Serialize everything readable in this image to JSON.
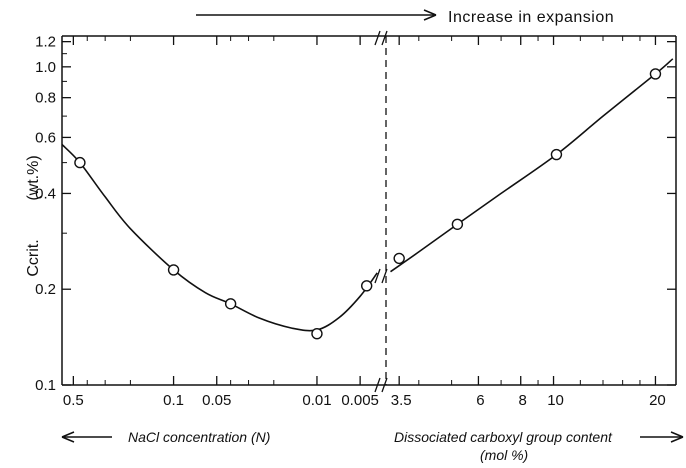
{
  "chart_data": {
    "type": "scatter",
    "title": "",
    "y_axis": {
      "label_main": "Ccrit.",
      "label_unit": "(wt.%)",
      "scale": "log",
      "range": [
        0.1,
        1.25
      ],
      "ticks": [
        {
          "value": 0.1,
          "label": "0.1"
        },
        {
          "value": 0.2,
          "label": "0.2"
        },
        {
          "value": 0.4,
          "label": "0.4"
        },
        {
          "value": 0.6,
          "label": "0.6"
        },
        {
          "value": 0.8,
          "label": "0.8"
        },
        {
          "value": 1.0,
          "label": "1.0"
        },
        {
          "value": 1.2,
          "label": "1.2"
        }
      ]
    },
    "x_axis_left": {
      "label": "NaCl concentration (N)",
      "arrow_direction": "left",
      "scale": "log-reversed",
      "range": [
        0.6,
        0.0033
      ],
      "ticks": [
        {
          "value": 0.5,
          "label": "0.5"
        },
        {
          "value": 0.1,
          "label": "0.1"
        },
        {
          "value": 0.05,
          "label": "0.05"
        },
        {
          "value": 0.01,
          "label": "0.01"
        },
        {
          "value": 0.005,
          "label": "0.005"
        }
      ]
    },
    "x_axis_right": {
      "label_line1": "Dissociated carboxyl group content",
      "label_line2": "(mol %)",
      "arrow_direction": "right",
      "scale": "log",
      "range": [
        3.2,
        23
      ],
      "ticks": [
        {
          "value": 3.5,
          "label": "3.5"
        },
        {
          "value": 6,
          "label": "6"
        },
        {
          "value": 8,
          "label": "8"
        },
        {
          "value": 10,
          "label": "10"
        },
        {
          "value": 20,
          "label": "20"
        }
      ]
    },
    "top_annotation": "Increase in expansion",
    "series": [
      {
        "axis": "left",
        "points": [
          {
            "x": 0.45,
            "y": 0.5
          },
          {
            "x": 0.1,
            "y": 0.23
          },
          {
            "x": 0.04,
            "y": 0.18
          },
          {
            "x": 0.01,
            "y": 0.145
          },
          {
            "x": 0.0045,
            "y": 0.205
          }
        ]
      },
      {
        "axis": "right",
        "points": [
          {
            "x": 3.5,
            "y": 0.25
          },
          {
            "x": 5.2,
            "y": 0.32
          },
          {
            "x": 10.2,
            "y": 0.53
          },
          {
            "x": 20,
            "y": 0.95
          }
        ]
      }
    ],
    "fit_curve": {
      "left": [
        {
          "x": 0.6,
          "y": 0.57
        },
        {
          "x": 0.45,
          "y": 0.5
        },
        {
          "x": 0.3,
          "y": 0.39
        },
        {
          "x": 0.2,
          "y": 0.31
        },
        {
          "x": 0.1,
          "y": 0.23
        },
        {
          "x": 0.06,
          "y": 0.195
        },
        {
          "x": 0.04,
          "y": 0.18
        },
        {
          "x": 0.025,
          "y": 0.162
        },
        {
          "x": 0.015,
          "y": 0.151
        },
        {
          "x": 0.01,
          "y": 0.149
        },
        {
          "x": 0.007,
          "y": 0.163
        },
        {
          "x": 0.005,
          "y": 0.19
        },
        {
          "x": 0.0038,
          "y": 0.225
        }
      ],
      "right": [
        {
          "x": 3.3,
          "y": 0.227
        },
        {
          "x": 4,
          "y": 0.262
        },
        {
          "x": 5.2,
          "y": 0.32
        },
        {
          "x": 7,
          "y": 0.4
        },
        {
          "x": 10.2,
          "y": 0.53
        },
        {
          "x": 14,
          "y": 0.7
        },
        {
          "x": 20,
          "y": 0.95
        },
        {
          "x": 22.5,
          "y": 1.06
        }
      ]
    },
    "grid": false,
    "legend": "none"
  }
}
